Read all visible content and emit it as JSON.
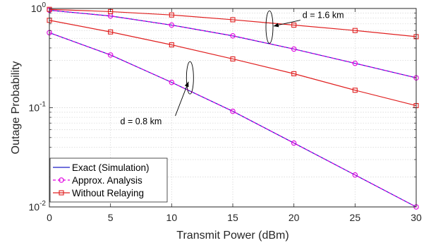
{
  "chart_data": {
    "type": "line",
    "title": "",
    "xlabel": "Transmit Power (dBm)",
    "ylabel": "Outage Probability",
    "xlim": [
      0,
      30
    ],
    "ylim": [
      0.01,
      1
    ],
    "yscale": "log",
    "grid": true,
    "legend_position": "bottom-left",
    "x_ticks": [
      0,
      5,
      10,
      15,
      20,
      25,
      30
    ],
    "x_tick_labels": [
      "0",
      "5",
      "10",
      "15",
      "20",
      "25",
      "30"
    ],
    "y_ticks": [
      0.01,
      0.1,
      1
    ],
    "y_tick_labels": [
      {
        "base": "10",
        "exp": "-2"
      },
      {
        "base": "10",
        "exp": "-1"
      },
      {
        "base": "10",
        "exp": "0"
      }
    ],
    "legend": [
      {
        "label": "Exact (Simulation)",
        "color": "#1f1fc8",
        "marker": "none",
        "dash": "solid"
      },
      {
        "label": "Approx. Analysis",
        "color": "#e000e0",
        "marker": "circle",
        "dash": "dashed"
      },
      {
        "label": "Without Relaying",
        "color": "#e02020",
        "marker": "square",
        "dash": "solid"
      }
    ],
    "series": [
      {
        "label": "Exact (Simulation)",
        "group": "d = 1.6 km",
        "color": "#1f1fc8",
        "marker": "none",
        "dash": "solid",
        "x": [
          0,
          5,
          10,
          15,
          20,
          25,
          30
        ],
        "y": [
          0.96,
          0.84,
          0.68,
          0.53,
          0.39,
          0.28,
          0.2
        ]
      },
      {
        "label": "Approx. Analysis",
        "group": "d = 1.6 km",
        "color": "#e000e0",
        "marker": "circle",
        "dash": "dashed",
        "x": [
          0,
          5,
          10,
          15,
          20,
          25,
          30
        ],
        "y": [
          0.96,
          0.84,
          0.68,
          0.53,
          0.39,
          0.28,
          0.2
        ]
      },
      {
        "label": "Without Relaying",
        "group": "d = 1.6 km",
        "color": "#e02020",
        "marker": "square",
        "dash": "solid",
        "x": [
          0,
          5,
          10,
          15,
          20,
          25,
          30
        ],
        "y": [
          0.98,
          0.93,
          0.86,
          0.77,
          0.68,
          0.6,
          0.52
        ]
      },
      {
        "label": "Exact (Simulation)",
        "group": "d = 0.8 km",
        "color": "#1f1fc8",
        "marker": "none",
        "dash": "solid",
        "x": [
          0,
          5,
          10,
          15,
          20,
          25,
          30
        ],
        "y": [
          0.57,
          0.34,
          0.18,
          0.092,
          0.044,
          0.021,
          0.01
        ]
      },
      {
        "label": "Approx. Analysis",
        "group": "d = 0.8 km",
        "color": "#e000e0",
        "marker": "circle",
        "dash": "dashed",
        "x": [
          0,
          5,
          10,
          15,
          20,
          25,
          30
        ],
        "y": [
          0.57,
          0.34,
          0.18,
          0.092,
          0.044,
          0.021,
          0.01
        ]
      },
      {
        "label": "Without Relaying",
        "group": "d = 0.8 km",
        "color": "#e02020",
        "marker": "square",
        "dash": "solid",
        "x": [
          0,
          5,
          10,
          15,
          20,
          25,
          30
        ],
        "y": [
          0.76,
          0.58,
          0.43,
          0.31,
          0.22,
          0.15,
          0.105
        ]
      }
    ],
    "annotations": [
      {
        "text": "d = 1.6 km",
        "ellipse_at": {
          "x": 18,
          "y": 0.65
        },
        "text_at": {
          "x": 20.7,
          "y": 0.8
        }
      },
      {
        "text": "d = 0.8 km",
        "ellipse_at": {
          "x": 11.5,
          "y": 0.2
        },
        "text_at": {
          "x": 5.8,
          "y": 0.068
        }
      }
    ]
  }
}
